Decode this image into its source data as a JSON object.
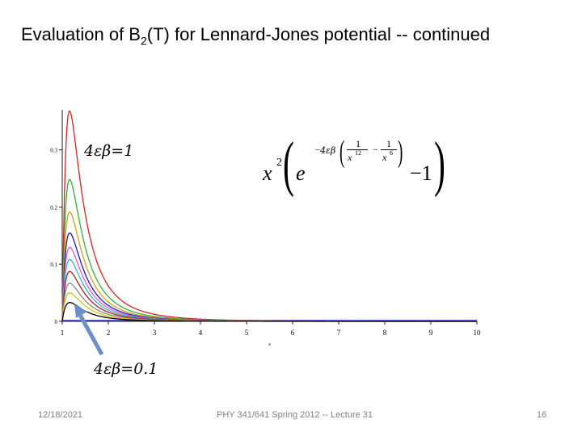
{
  "slide": {
    "title_main": "Evaluation of B",
    "title_sub": "2",
    "title_rest": "(T) for Lennard-Jones potential -- continued",
    "footer_date": "12/18/2021",
    "footer_text": "PHY 341/641 Spring 2012 -- Lecture 31",
    "page_number": "16"
  },
  "equation": {
    "x": "x",
    "power_2": "2",
    "e": "e",
    "exponent_coef": "4εβ",
    "frac1_num": "1",
    "frac1_den": "x",
    "frac1_den_pow": "12",
    "frac2_num": "1",
    "frac2_den": "x",
    "frac2_den_pow": "6",
    "minus": "−",
    "minus_one": "−1"
  },
  "annotations": {
    "top_label": "4εβ=1",
    "bottom_label": "4εβ=0.1"
  },
  "colors": {
    "axis": "#1f1f1f",
    "arrow": "#6b8fc9",
    "baseline": "#2a2ad8"
  },
  "chart_data": {
    "type": "line",
    "title": "",
    "xlabel": "x",
    "ylabel": "",
    "xlim": [
      1,
      10
    ],
    "ylim": [
      0,
      0.37
    ],
    "x_ticks": [
      "1",
      "2",
      "3",
      "4",
      "5",
      "6",
      "7",
      "8",
      "9",
      "10"
    ],
    "y_ticks": [
      {
        "value": 0,
        "label": "0"
      },
      {
        "value": 0.1,
        "label": "0.1"
      },
      {
        "value": 0.2,
        "label": "0.2"
      },
      {
        "value": 0.3,
        "label": "0.3"
      }
    ],
    "function": "x^2 (exp(-4εβ (1/x^12 - 1/x^6)) - 1)",
    "series": [
      {
        "beta": 1.0,
        "color": "#d32424"
      },
      {
        "beta": 0.7,
        "color": "#3aaa35"
      },
      {
        "beta": 0.55,
        "color": "#d6a020"
      },
      {
        "beta": 0.45,
        "color": "#1c1cbb"
      },
      {
        "beta": 0.38,
        "color": "#e35ad6"
      },
      {
        "beta": 0.32,
        "color": "#33b6c6"
      },
      {
        "beta": 0.26,
        "color": "#a31f1f"
      },
      {
        "beta": 0.2,
        "color": "#888888"
      },
      {
        "beta": 0.15,
        "color": "#d4c21a"
      },
      {
        "beta": 0.1,
        "color": "#000000"
      }
    ]
  }
}
